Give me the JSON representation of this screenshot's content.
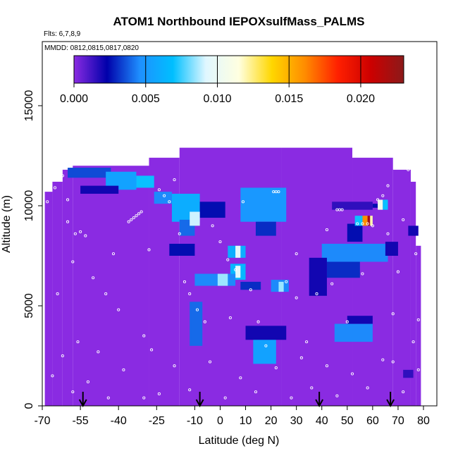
{
  "chart_data": {
    "type": "heatmap",
    "title": "ATOM1 Northbound IEPOXsulfMass_PALMS",
    "flights_label": "Flts: 6,7,8,9",
    "dates_label": "MMDD: 0812,0815,0817,0820",
    "xlabel": "Latitude (deg N)",
    "ylabel": "Altitude (m)",
    "xlim": [
      -70,
      80
    ],
    "ylim": [
      0,
      17500
    ],
    "x_ticks": [
      -70,
      -55,
      -40,
      -25,
      -10,
      0,
      10,
      20,
      30,
      40,
      50,
      60,
      70,
      80
    ],
    "y_ticks": [
      0,
      5000,
      10000,
      15000
    ],
    "colorbar": {
      "min": 0.0,
      "max": 0.023,
      "ticks": [
        0.0,
        0.005,
        0.01,
        0.015,
        0.02
      ],
      "tick_labels": [
        "0.000",
        "0.005",
        "0.010",
        "0.015",
        "0.020"
      ],
      "colors": [
        "#8a2be2",
        "#0000aa",
        "#1e90ff",
        "#00bfff",
        "#e0f7ff",
        "#ffffe0",
        "#ffd700",
        "#ff8c00",
        "#ff2000",
        "#cc0000",
        "#8b1a1a"
      ]
    },
    "background_value": 0.0,
    "coverage": [
      {
        "lat0": -69,
        "lat1": -66,
        "alt0": 0,
        "alt1": 10700
      },
      {
        "lat0": -66,
        "lat1": -62,
        "alt0": 0,
        "alt1": 11200
      },
      {
        "lat0": -62,
        "lat1": -58,
        "alt0": 0,
        "alt1": 11800
      },
      {
        "lat0": -58,
        "lat1": -28,
        "alt0": 0,
        "alt1": 12000
      },
      {
        "lat0": -28,
        "lat1": -16,
        "alt0": 0,
        "alt1": 12400
      },
      {
        "lat0": -16,
        "lat1": 24,
        "alt0": 0,
        "alt1": 12900
      },
      {
        "lat0": 24,
        "lat1": 52,
        "alt0": 0,
        "alt1": 12900
      },
      {
        "lat0": 52,
        "lat1": 68,
        "alt0": 0,
        "alt1": 12400
      },
      {
        "lat0": 68,
        "lat1": 75,
        "alt0": 0,
        "alt1": 11800
      },
      {
        "lat0": 75,
        "lat1": 77,
        "alt0": 0,
        "alt1": 11200
      },
      {
        "lat0": 77,
        "lat1": 79,
        "alt0": 0,
        "alt1": 8000
      }
    ],
    "cells": [
      {
        "lat0": -60,
        "lat1": -43,
        "alt0": 11400,
        "alt1": 11900,
        "value": 0.0035
      },
      {
        "lat0": -45,
        "lat1": -33,
        "alt0": 10800,
        "alt1": 11700,
        "value": 0.0055
      },
      {
        "lat0": -33,
        "lat1": -26,
        "alt0": 10900,
        "alt1": 11500,
        "value": 0.007
      },
      {
        "lat0": -55,
        "lat1": -40,
        "alt0": 10600,
        "alt1": 11000,
        "value": 0.002
      },
      {
        "lat0": -26,
        "lat1": -19,
        "alt0": 10100,
        "alt1": 10700,
        "value": 0.0045
      },
      {
        "lat0": -19,
        "lat1": -8,
        "alt0": 9200,
        "alt1": 10600,
        "value": 0.006
      },
      {
        "lat0": -16,
        "lat1": -10,
        "alt0": 8500,
        "alt1": 9300,
        "value": 0.004
      },
      {
        "lat0": -8,
        "lat1": 2,
        "alt0": 9400,
        "alt1": 10200,
        "value": 0.0025
      },
      {
        "lat0": 8,
        "lat1": 26,
        "alt0": 9200,
        "alt1": 10900,
        "value": 0.005
      },
      {
        "lat0": 14,
        "lat1": 22,
        "alt0": 8500,
        "alt1": 9200,
        "value": 0.003
      },
      {
        "lat0": -12,
        "lat1": -8,
        "alt0": 9000,
        "alt1": 9700,
        "value": 0.009
      },
      {
        "lat0": -20,
        "lat1": -10,
        "alt0": 7500,
        "alt1": 8100,
        "value": 0.0025
      },
      {
        "lat0": 3,
        "lat1": 10,
        "alt0": 7400,
        "alt1": 8000,
        "value": 0.006
      },
      {
        "lat0": 6,
        "lat1": 8,
        "alt0": 7400,
        "alt1": 8000,
        "value": 0.0095
      },
      {
        "lat0": 4,
        "lat1": 10,
        "alt0": 6300,
        "alt1": 7100,
        "value": 0.0065
      },
      {
        "lat0": 6,
        "lat1": 8,
        "alt0": 6400,
        "alt1": 7000,
        "value": 0.0095
      },
      {
        "lat0": -10,
        "lat1": 6,
        "alt0": 6000,
        "alt1": 6600,
        "value": 0.0045
      },
      {
        "lat0": -1,
        "lat1": 3,
        "alt0": 6000,
        "alt1": 6600,
        "value": 0.0085
      },
      {
        "lat0": 8,
        "lat1": 16,
        "alt0": 5800,
        "alt1": 6200,
        "value": 0.003
      },
      {
        "lat0": 20,
        "lat1": 27,
        "alt0": 5700,
        "alt1": 6300,
        "value": 0.0045
      },
      {
        "lat0": 23,
        "lat1": 25,
        "alt0": 5700,
        "alt1": 6200,
        "value": 0.0085
      },
      {
        "lat0": -12,
        "lat1": -7,
        "alt0": 3000,
        "alt1": 5200,
        "value": 0.004
      },
      {
        "lat0": 13,
        "lat1": 22,
        "alt0": 2100,
        "alt1": 3900,
        "value": 0.0055
      },
      {
        "lat0": 10,
        "lat1": 26,
        "alt0": 3300,
        "alt1": 4000,
        "value": 0.002
      },
      {
        "lat0": 45,
        "lat1": 60,
        "alt0": 3200,
        "alt1": 4100,
        "value": 0.0045
      },
      {
        "lat0": 50,
        "lat1": 60,
        "alt0": 4100,
        "alt1": 4500,
        "value": 0.002
      },
      {
        "lat0": 40,
        "lat1": 66,
        "alt0": 7200,
        "alt1": 8100,
        "value": 0.0045
      },
      {
        "lat0": 42,
        "lat1": 55,
        "alt0": 6400,
        "alt1": 7200,
        "value": 0.003
      },
      {
        "lat0": 35,
        "lat1": 42,
        "alt0": 5500,
        "alt1": 7400,
        "value": 0.002
      },
      {
        "lat0": 50,
        "lat1": 56,
        "alt0": 8200,
        "alt1": 9100,
        "value": 0.0025
      },
      {
        "lat0": 56,
        "lat1": 58,
        "alt0": 9000,
        "alt1": 9500,
        "value": 0.016
      },
      {
        "lat0": 58,
        "lat1": 59,
        "alt0": 9000,
        "alt1": 9500,
        "value": 0.022
      },
      {
        "lat0": 59,
        "lat1": 60,
        "alt0": 9000,
        "alt1": 9500,
        "value": 0.012
      },
      {
        "lat0": 53,
        "lat1": 56,
        "alt0": 9000,
        "alt1": 9500,
        "value": 0.007
      },
      {
        "lat0": 60,
        "lat1": 62,
        "alt0": 9900,
        "alt1": 10100,
        "value": 0.0025
      },
      {
        "lat0": 62,
        "lat1": 64,
        "alt0": 9800,
        "alt1": 10300,
        "value": 0.0105
      },
      {
        "lat0": 64,
        "lat1": 66,
        "alt0": 9800,
        "alt1": 10300,
        "value": 0.007
      },
      {
        "lat0": 44,
        "lat1": 60,
        "alt0": 9800,
        "alt1": 10200,
        "value": 0.0015
      },
      {
        "lat0": 65,
        "lat1": 70,
        "alt0": 7500,
        "alt1": 8200,
        "value": 0.002
      },
      {
        "lat0": 74,
        "lat1": 78,
        "alt0": 8500,
        "alt1": 9000,
        "value": 0.002
      },
      {
        "lat0": 72,
        "lat1": 76,
        "alt0": 1400,
        "alt1": 1800,
        "value": 0.0015
      }
    ],
    "flight_track_points": [
      {
        "lat": -68,
        "alt": 10200
      },
      {
        "lat": -65,
        "alt": 10900
      },
      {
        "lat": -62,
        "alt": 11500
      },
      {
        "lat": -60,
        "alt": 10300
      },
      {
        "lat": -57,
        "alt": 8600
      },
      {
        "lat": -55,
        "alt": 8700
      },
      {
        "lat": -53,
        "alt": 8500
      },
      {
        "lat": -60,
        "alt": 9200
      },
      {
        "lat": -58,
        "alt": 7200
      },
      {
        "lat": -50,
        "alt": 6400
      },
      {
        "lat": -45,
        "alt": 5600
      },
      {
        "lat": -40,
        "alt": 4800
      },
      {
        "lat": -36,
        "alt": 9200
      },
      {
        "lat": -35,
        "alt": 9300
      },
      {
        "lat": -34,
        "alt": 9400
      },
      {
        "lat": -33,
        "alt": 9500
      },
      {
        "lat": -32,
        "alt": 9600
      },
      {
        "lat": -31,
        "alt": 9700
      },
      {
        "lat": -30,
        "alt": 3500
      },
      {
        "lat": -27,
        "alt": 2800
      },
      {
        "lat": -24,
        "alt": 10800
      },
      {
        "lat": -22,
        "alt": 10500
      },
      {
        "lat": -20,
        "alt": 10200
      },
      {
        "lat": -18,
        "alt": 11300
      },
      {
        "lat": -14,
        "alt": 6200
      },
      {
        "lat": -12,
        "alt": 5600
      },
      {
        "lat": -9,
        "alt": 4800
      },
      {
        "lat": -6,
        "alt": 4200
      },
      {
        "lat": -3,
        "alt": 9000
      },
      {
        "lat": 0,
        "alt": 8200
      },
      {
        "lat": 3,
        "alt": 7300
      },
      {
        "lat": 6,
        "alt": 6800
      },
      {
        "lat": 9,
        "alt": 10200
      },
      {
        "lat": 12,
        "alt": 5800
      },
      {
        "lat": 15,
        "alt": 4200
      },
      {
        "lat": 18,
        "alt": 3000
      },
      {
        "lat": 21,
        "alt": 10700
      },
      {
        "lat": 22,
        "alt": 10700
      },
      {
        "lat": 23,
        "alt": 10700
      },
      {
        "lat": 26,
        "alt": 6200
      },
      {
        "lat": 30,
        "alt": 5400
      },
      {
        "lat": 34,
        "alt": 3200
      },
      {
        "lat": 38,
        "alt": 5600
      },
      {
        "lat": 42,
        "alt": 8800
      },
      {
        "lat": 46,
        "alt": 9800
      },
      {
        "lat": 47,
        "alt": 9800
      },
      {
        "lat": 48,
        "alt": 9800
      },
      {
        "lat": 50,
        "alt": 4200
      },
      {
        "lat": 54,
        "alt": 9100
      },
      {
        "lat": 56,
        "alt": 9100
      },
      {
        "lat": 58,
        "alt": 9100
      },
      {
        "lat": 60,
        "alt": 9000
      },
      {
        "lat": 62,
        "alt": 10300
      },
      {
        "lat": 64,
        "alt": 10500
      },
      {
        "lat": 66,
        "alt": 11000
      },
      {
        "lat": 68,
        "alt": 4600
      },
      {
        "lat": 70,
        "alt": 6700
      },
      {
        "lat": 72,
        "alt": 9300
      },
      {
        "lat": 74,
        "alt": 11800
      },
      {
        "lat": 76,
        "alt": 3200
      },
      {
        "lat": 78,
        "alt": 4300
      },
      {
        "lat": 77,
        "alt": 7600
      },
      {
        "lat": -66,
        "alt": 1500
      },
      {
        "lat": -62,
        "alt": 2500
      },
      {
        "lat": -58,
        "alt": 700
      },
      {
        "lat": -52,
        "alt": 1200
      },
      {
        "lat": -48,
        "alt": 2700
      },
      {
        "lat": -44,
        "alt": 400
      },
      {
        "lat": -38,
        "alt": 1800
      },
      {
        "lat": -30,
        "alt": 400
      },
      {
        "lat": -24,
        "alt": 600
      },
      {
        "lat": -18,
        "alt": 2000
      },
      {
        "lat": -12,
        "alt": 800
      },
      {
        "lat": -4,
        "alt": 2200
      },
      {
        "lat": 2,
        "alt": 400
      },
      {
        "lat": 8,
        "alt": 1400
      },
      {
        "lat": 14,
        "alt": 700
      },
      {
        "lat": 22,
        "alt": 1900
      },
      {
        "lat": 28,
        "alt": 400
      },
      {
        "lat": 32,
        "alt": 2400
      },
      {
        "lat": 36,
        "alt": 900
      },
      {
        "lat": 42,
        "alt": 2000
      },
      {
        "lat": 46,
        "alt": 500
      },
      {
        "lat": 52,
        "alt": 1600
      },
      {
        "lat": 58,
        "alt": 900
      },
      {
        "lat": 64,
        "alt": 2300
      },
      {
        "lat": 68,
        "alt": 2200
      },
      {
        "lat": 72,
        "alt": 700
      },
      {
        "lat": 78,
        "alt": 1800
      },
      {
        "lat": -64,
        "alt": 5600
      },
      {
        "lat": -56,
        "alt": 3200
      },
      {
        "lat": -42,
        "alt": 7600
      },
      {
        "lat": -28,
        "alt": 7800
      },
      {
        "lat": -16,
        "alt": 8600
      },
      {
        "lat": 4,
        "alt": 4400
      },
      {
        "lat": 30,
        "alt": 7600
      },
      {
        "lat": 44,
        "alt": 6100
      },
      {
        "lat": 56,
        "alt": 6600
      },
      {
        "lat": 66,
        "alt": 8600
      }
    ],
    "arrow_latitudes": [
      -54,
      -8,
      39,
      67
    ]
  }
}
